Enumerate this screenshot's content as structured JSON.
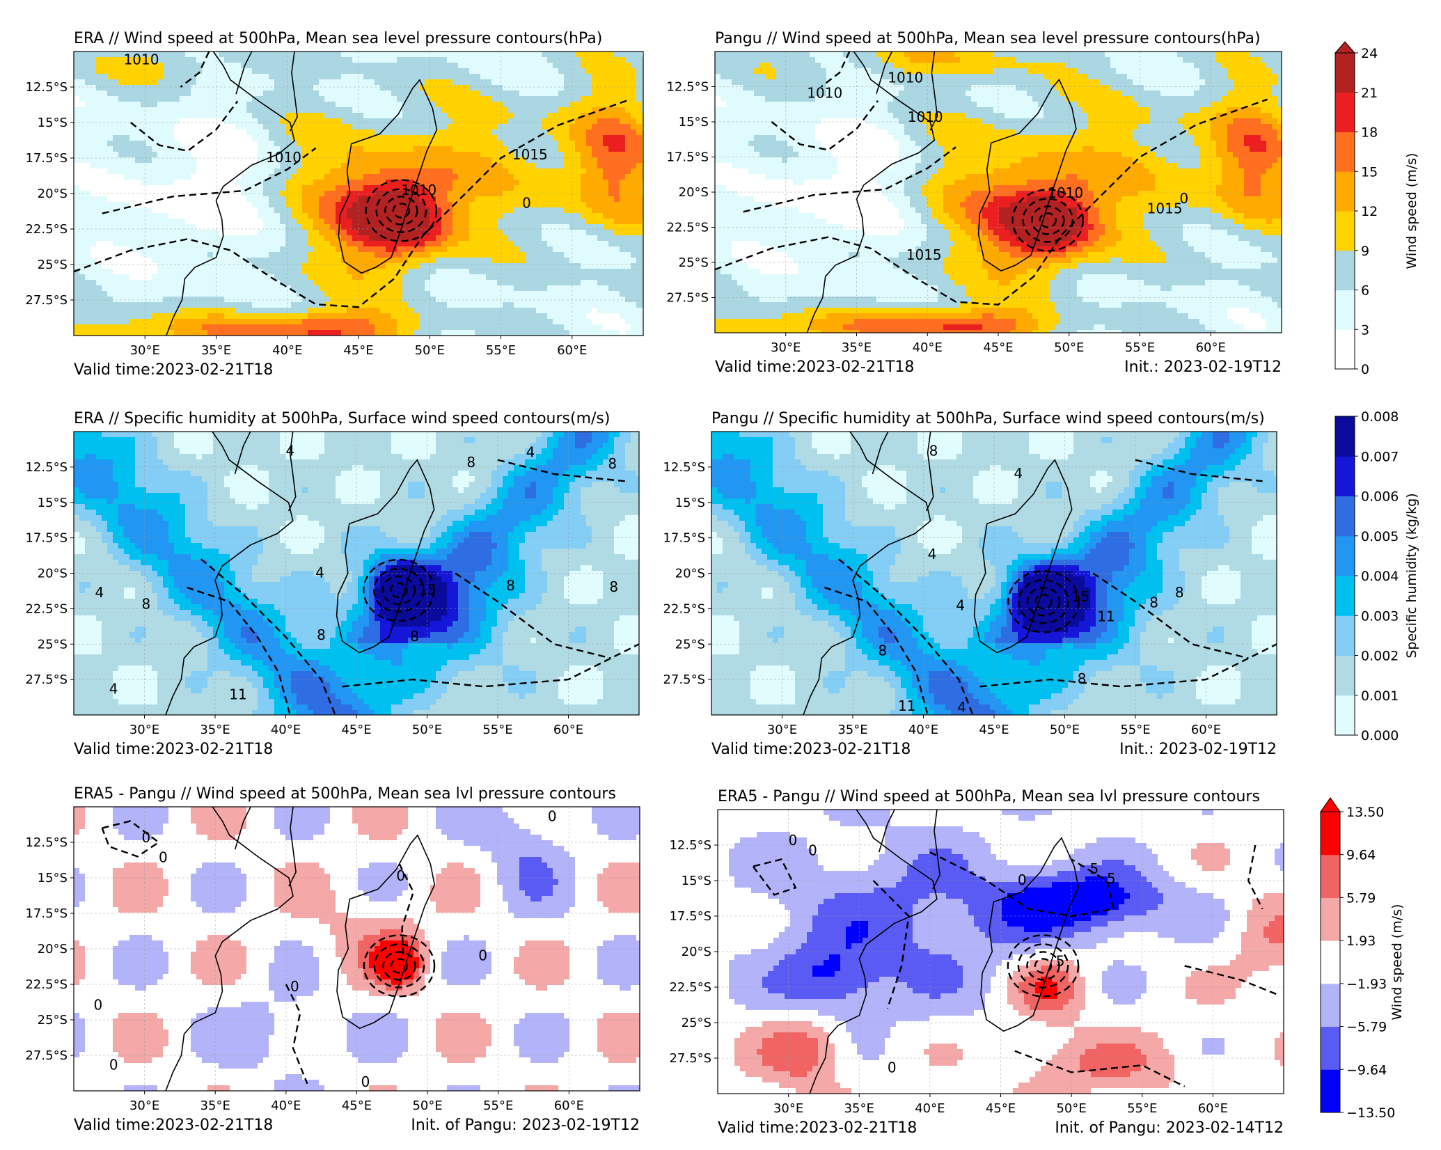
{
  "figure": {
    "panels": [
      {
        "id": "era-wind",
        "title": "ERA // Wind speed at 500hPa, Mean sea level pressure contours(hPa)",
        "footer_left": "Valid time:2023-02-21T18",
        "footer_right": "",
        "field": "wind",
        "contour_labels": [
          "1010",
          "1010",
          "1010",
          "1015",
          "0"
        ]
      },
      {
        "id": "pangu-wind",
        "title": "Pangu // Wind speed at 500hPa, Mean sea level pressure contours(hPa)",
        "footer_left": "Valid time:2023-02-21T18",
        "footer_right": "Init.: 2023-02-19T12",
        "field": "wind",
        "contour_labels": [
          "1010",
          "1010",
          "1010",
          "1010",
          "1015",
          "1015",
          "0"
        ]
      },
      {
        "id": "era-humidity",
        "title": "ERA //   Specific humidity at 500hPa, Surface wind speed contours(m/s)",
        "footer_left": "Valid time:2023-02-21T18",
        "footer_right": "",
        "field": "humidity",
        "contour_labels": [
          "4",
          "8",
          "8",
          "4",
          "8",
          "8",
          "4",
          "4",
          "8",
          "4",
          "11",
          "15",
          "8",
          "8"
        ]
      },
      {
        "id": "pangu-humidity",
        "title": "Pangu // Specific humidity at 500hPa, Surface wind speed contours(m/s)",
        "footer_left": "Valid time:2023-02-21T18",
        "footer_right": "Init.: 2023-02-19T12",
        "field": "humidity",
        "contour_labels": [
          "8",
          "4",
          "4",
          "4",
          "15",
          "11",
          "8",
          "8",
          "11",
          "4",
          "8",
          "8"
        ]
      },
      {
        "id": "diff-1",
        "title": "ERA5 - Pangu  // Wind speed at 500hPa, Mean sea lvl pressure contours",
        "footer_left": "Valid time:2023-02-21T18",
        "footer_right": "Init. of Pangu: 2023-02-19T12",
        "field": "diff",
        "contour_labels": [
          "0",
          "0",
          "0",
          "0",
          "0",
          "0",
          "0",
          "0",
          "0"
        ]
      },
      {
        "id": "diff-2",
        "title": "ERA5 - Pangu  // Wind speed at 500hPa, Mean sea lvl pressure contours",
        "footer_left": "Valid time:2023-02-21T18",
        "footer_right": "Init. of Pangu: 2023-02-14T12",
        "field": "diff",
        "contour_labels": [
          "0",
          "0",
          "5",
          "5",
          "0",
          "5",
          "0"
        ]
      }
    ],
    "colorbars": [
      {
        "id": "wind-cbar",
        "label": "Wind speed (m/s)",
        "ticks": [
          "0",
          "3",
          "6",
          "9",
          "12",
          "15",
          "18",
          "21",
          "24"
        ],
        "colors": [
          "#ffffff",
          "#e0fbfd",
          "#abd7e3",
          "#ffd200",
          "#ffaa00",
          "#ff6f1f",
          "#eb1f1f",
          "#b22222"
        ],
        "extend_color": "#b22222"
      },
      {
        "id": "humidity-cbar",
        "label": "Specific humidity  (kg/kg)",
        "ticks": [
          "0.000",
          "0.001",
          "0.002",
          "0.003",
          "0.004",
          "0.005",
          "0.006",
          "0.007",
          "0.008"
        ],
        "colors": [
          "#e0fcfd",
          "#b0dbe4",
          "#84cdf5",
          "#00c0f0",
          "#2196f3",
          "#2f6ee2",
          "#1616d8",
          "#0a0a9c"
        ]
      },
      {
        "id": "diff-cbar",
        "label": "Wind speed  (m/s)",
        "ticks": [
          "−13.50",
          "−9.64",
          "−5.79",
          "−1.93",
          "1.93",
          "5.79",
          "9.64",
          "13.50"
        ],
        "colors": [
          "#0000ff",
          "#5a5af5",
          "#b3b3fa",
          "#ffffff",
          "#f5a8a8",
          "#f06464",
          "#ff0000"
        ],
        "extend_color": "#ff0000"
      }
    ],
    "axes": {
      "x_ticks": [
        "30°E",
        "35°E",
        "40°E",
        "45°E",
        "50°E",
        "55°E",
        "60°E"
      ],
      "y_ticks": [
        "12.5°S",
        "15°S",
        "17.5°S",
        "20°S",
        "22.5°S",
        "25°S",
        "27.5°S"
      ]
    }
  },
  "chart_data": [
    {
      "type": "heatmap",
      "title": "ERA // Wind speed at 500hPa, Mean sea level pressure contours(hPa)",
      "variable": "wind speed (m/s)",
      "xlim": [
        25,
        65
      ],
      "ylim": [
        -30,
        -10
      ],
      "features": [
        {
          "name": "cyclone core",
          "lon": 48,
          "lat": -21.5,
          "peak": 22
        },
        {
          "name": "jet south",
          "lon": 42,
          "lat": -29.5,
          "peak": 19
        }
      ],
      "contours": "Mean sea level pressure (hPa): 1010, 1015"
    },
    {
      "type": "heatmap",
      "title": "Pangu // Wind speed at 500hPa, Mean sea level pressure contours(hPa)",
      "variable": "wind speed (m/s)",
      "xlim": [
        25,
        65
      ],
      "ylim": [
        -30,
        -10
      ],
      "features": [
        {
          "name": "cyclone core",
          "lon": 48.5,
          "lat": -22.5,
          "peak": 22
        },
        {
          "name": "jet south",
          "lon": 43,
          "lat": -29.5,
          "peak": 19
        }
      ],
      "contours": "Mean sea level pressure (hPa): 1010, 1015"
    },
    {
      "type": "heatmap",
      "title": "ERA //   Specific humidity at 500hPa, Surface wind speed contours(m/s)",
      "variable": "specific humidity (kg/kg)",
      "xlim": [
        25,
        65
      ],
      "ylim": [
        -30,
        -10
      ],
      "features": [
        {
          "name": "moist core",
          "lon": 48,
          "lat": -21,
          "peak": 0.008
        }
      ],
      "contours": "Surface wind speed (m/s): 4, 8, 11, 15"
    },
    {
      "type": "heatmap",
      "title": "Pangu // Specific humidity at 500hPa, Surface wind speed contours(m/s)",
      "variable": "specific humidity (kg/kg)",
      "xlim": [
        25,
        65
      ],
      "ylim": [
        -30,
        -10
      ],
      "features": [
        {
          "name": "moist core",
          "lon": 48.5,
          "lat": -21.5,
          "peak": 0.007
        }
      ],
      "contours": "Surface wind speed (m/s): 4, 8, 11, 15"
    },
    {
      "type": "heatmap",
      "title": "ERA5 - Pangu  // Wind speed at 500hPa, Mean sea lvl pressure contours",
      "variable": "wind speed difference (m/s)",
      "xlim": [
        25,
        65
      ],
      "ylim": [
        -30,
        -10
      ],
      "features": [
        {
          "name": "positive core",
          "lon": 48,
          "lat": -21,
          "peak": 12
        }
      ],
      "contours": "Mean sea level pressure difference: 0"
    },
    {
      "type": "heatmap",
      "title": "ERA5 - Pangu  // Wind speed at 500hPa, Mean sea lvl pressure contours",
      "variable": "wind speed difference (m/s)",
      "xlim": [
        25,
        65
      ],
      "ylim": [
        -30,
        -10
      ],
      "features": [
        {
          "name": "negative band",
          "lon": 51,
          "lat": -16.5,
          "peak": -11
        },
        {
          "name": "positive core",
          "lon": 48.5,
          "lat": -22.5,
          "peak": 9
        }
      ],
      "contours": "Mean sea level pressure difference: 0, 5"
    }
  ]
}
